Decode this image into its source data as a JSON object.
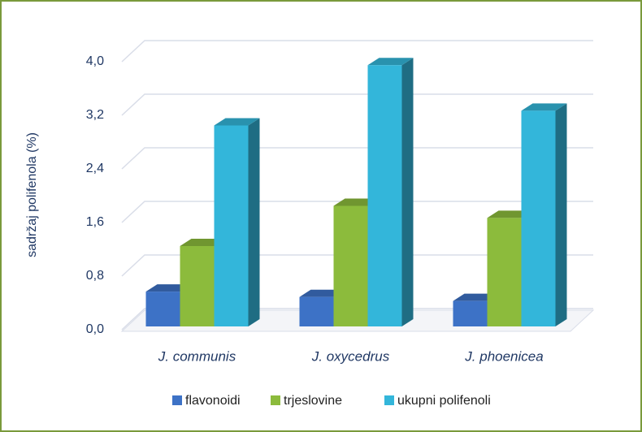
{
  "chart_data": {
    "type": "bar3d",
    "y_label": "sadržaj polifenola (%)",
    "categories": [
      "J. communis",
      "J. oxycedrus",
      "J. phoenicea"
    ],
    "series": [
      {
        "name": "flavonoidi",
        "color": "#3d72c6",
        "values": [
          0.52,
          0.44,
          0.38
        ]
      },
      {
        "name": "trjeslovine",
        "color": "#8cbb3c",
        "values": [
          1.2,
          1.8,
          1.62
        ]
      },
      {
        "name": "ukupni polifenoli",
        "color": "#33b6da",
        "values": [
          3.0,
          3.9,
          3.22
        ]
      }
    ],
    "ylim": [
      0,
      4.0
    ],
    "yticks": [
      {
        "value": 0,
        "label": "0,0"
      },
      {
        "value": 0.8,
        "label": "0,8"
      },
      {
        "value": 1.6,
        "label": "1,6"
      },
      {
        "value": 2.4,
        "label": "2,4"
      },
      {
        "value": 3.2,
        "label": "3,2"
      },
      {
        "value": 4.0,
        "label": "4,0"
      }
    ],
    "grid": true,
    "legend": "bottom"
  }
}
